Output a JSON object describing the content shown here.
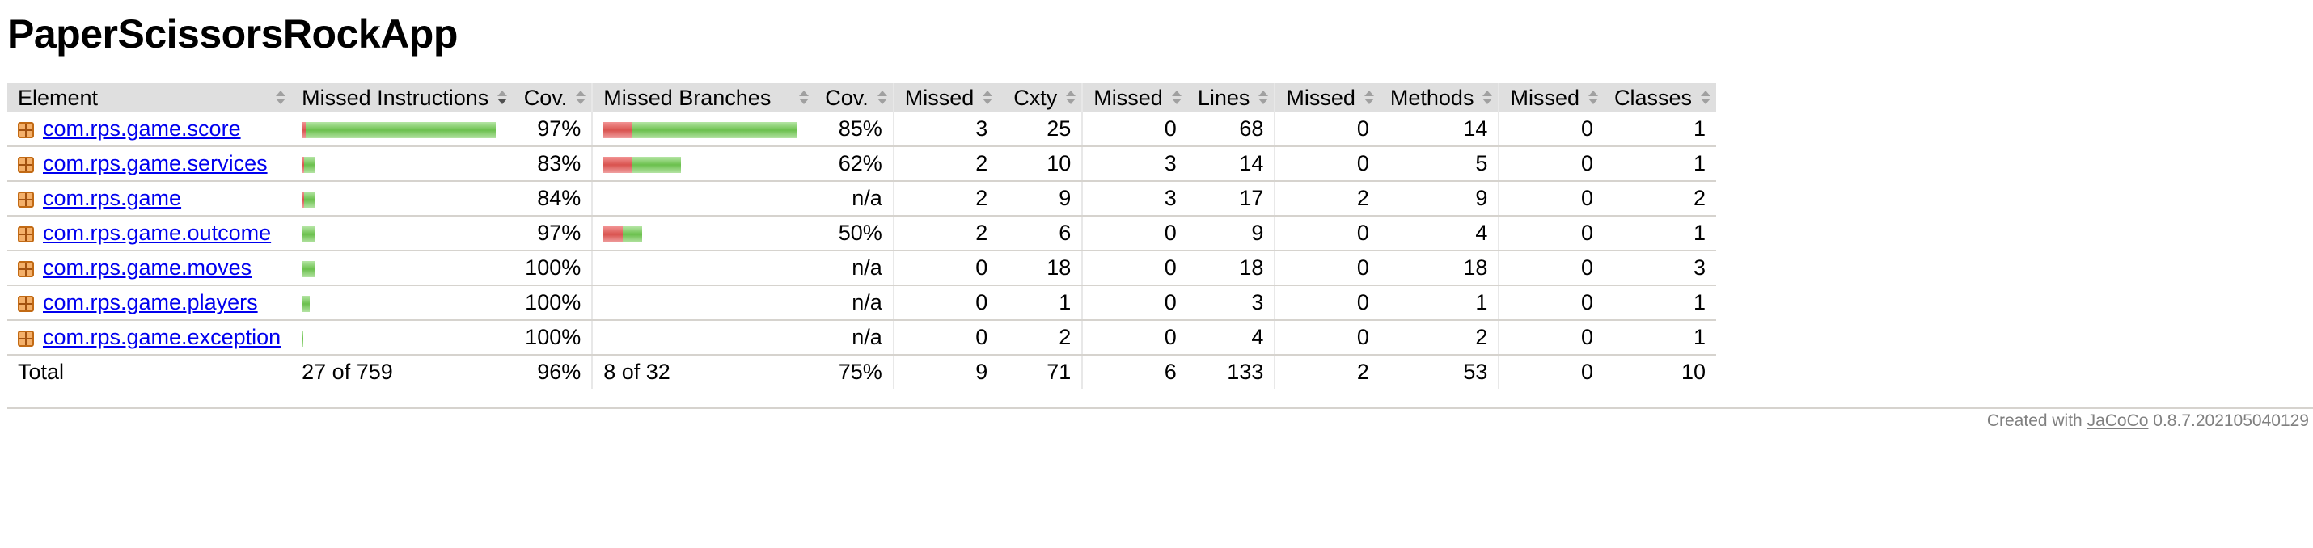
{
  "page": {
    "title": "PaperScissorsRockApp"
  },
  "columns": {
    "element": "Element",
    "missed_instructions": "Missed Instructions",
    "instr_cov": "Cov.",
    "missed_branches": "Missed Branches",
    "branch_cov": "Cov.",
    "missed_cxty": "Missed",
    "cxty": "Cxty",
    "missed_lines": "Missed",
    "lines": "Lines",
    "missed_methods": "Missed",
    "methods": "Methods",
    "missed_classes": "Missed",
    "classes": "Classes"
  },
  "rows": [
    {
      "name": "com.rps.game.score",
      "instr_cov": "97%",
      "branch_cov": "85%",
      "missed_cxty": "3",
      "cxty": "25",
      "missed_lines": "0",
      "lines": "68",
      "missed_methods": "0",
      "methods": "14",
      "missed_classes": "0",
      "classes": "1",
      "instr_bar": {
        "missed_fraction": 0.02,
        "scale": 1.0
      },
      "branch_bar": {
        "missed_fraction": 0.15,
        "scale": 1.0
      }
    },
    {
      "name": "com.rps.game.services",
      "instr_cov": "83%",
      "branch_cov": "62%",
      "missed_cxty": "2",
      "cxty": "10",
      "missed_lines": "3",
      "lines": "14",
      "missed_methods": "0",
      "methods": "5",
      "missed_classes": "0",
      "classes": "1",
      "instr_bar": {
        "missed_fraction": 0.17,
        "scale": 0.07
      },
      "branch_bar": {
        "missed_fraction": 0.38,
        "scale": 0.4
      }
    },
    {
      "name": "com.rps.game",
      "instr_cov": "84%",
      "branch_cov": "n/a",
      "missed_cxty": "2",
      "cxty": "9",
      "missed_lines": "3",
      "lines": "17",
      "missed_methods": "2",
      "methods": "9",
      "missed_classes": "0",
      "classes": "2",
      "instr_bar": {
        "missed_fraction": 0.16,
        "scale": 0.07
      },
      "branch_bar": null
    },
    {
      "name": "com.rps.game.outcome",
      "instr_cov": "97%",
      "branch_cov": "50%",
      "missed_cxty": "2",
      "cxty": "6",
      "missed_lines": "0",
      "lines": "9",
      "missed_methods": "0",
      "methods": "4",
      "missed_classes": "0",
      "classes": "1",
      "instr_bar": {
        "missed_fraction": 0.03,
        "scale": 0.07
      },
      "branch_bar": {
        "missed_fraction": 0.5,
        "scale": 0.2
      }
    },
    {
      "name": "com.rps.game.moves",
      "instr_cov": "100%",
      "branch_cov": "n/a",
      "missed_cxty": "0",
      "cxty": "18",
      "missed_lines": "0",
      "lines": "18",
      "missed_methods": "0",
      "methods": "18",
      "missed_classes": "0",
      "classes": "3",
      "instr_bar": {
        "missed_fraction": 0.0,
        "scale": 0.07
      },
      "branch_bar": null
    },
    {
      "name": "com.rps.game.players",
      "instr_cov": "100%",
      "branch_cov": "n/a",
      "missed_cxty": "0",
      "cxty": "1",
      "missed_lines": "0",
      "lines": "3",
      "missed_methods": "0",
      "methods": "1",
      "missed_classes": "0",
      "classes": "1",
      "instr_bar": {
        "missed_fraction": 0.0,
        "scale": 0.04
      },
      "branch_bar": null
    },
    {
      "name": "com.rps.game.exception",
      "instr_cov": "100%",
      "branch_cov": "n/a",
      "missed_cxty": "0",
      "cxty": "2",
      "missed_lines": "0",
      "lines": "4",
      "missed_methods": "0",
      "methods": "2",
      "missed_classes": "0",
      "classes": "1",
      "instr_bar": {
        "missed_fraction": 0.0,
        "scale": 0.01
      },
      "branch_bar": null
    }
  ],
  "total": {
    "label": "Total",
    "missed_instructions": "27 of 759",
    "instr_cov": "96%",
    "missed_branches": "8 of 32",
    "branch_cov": "75%",
    "missed_cxty": "9",
    "cxty": "71",
    "missed_lines": "6",
    "lines": "133",
    "missed_methods": "2",
    "methods": "53",
    "missed_classes": "0",
    "classes": "10"
  },
  "footer": {
    "prefix": "Created with",
    "link": "JaCoCo",
    "version": "0.8.7.202105040129"
  },
  "colors": {
    "missed": "#d9534f",
    "covered": "#6bc04d",
    "header_bg": "#dfdfdf"
  }
}
